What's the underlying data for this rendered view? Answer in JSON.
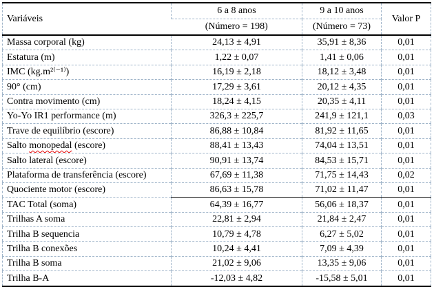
{
  "table": {
    "header": {
      "variables": "Variáveis",
      "group_6_8": {
        "title": "6 a 8 anos",
        "subtitle": "(Número = 198)"
      },
      "group_9_10": {
        "title": "9 a 10 anos",
        "subtitle": "(Número = 73)"
      },
      "valor_p": "Valor P"
    },
    "rows": [
      {
        "label": "Massa corporal (kg)",
        "v6_8": "24,13 ± 4,91",
        "v9_10": "35,91 ± 8,36",
        "p": "0,01"
      },
      {
        "label": "Estatura (m)",
        "v6_8": "1,22 ± 0,07",
        "v9_10": "1,41 ± 0,06",
        "p": "0,01"
      },
      {
        "label": "IMC (kg.m²⁽⁻¹⁾)",
        "v6_8": "16,19 ± 2,18",
        "v9_10": "18,12 ± 3,48",
        "p": "0,01"
      },
      {
        "label": "90° (cm)",
        "v6_8": "17,29 ± 3,61",
        "v9_10": "20,12 ± 4,35",
        "p": "0,01"
      },
      {
        "label": "Contra movimento (cm)",
        "v6_8": "18,24 ± 4,15",
        "v9_10": "20,35 ± 4,11",
        "p": "0,01"
      },
      {
        "label": "Yo-Yo IR1 performance (m)",
        "v6_8": "326,3 ± 225,7",
        "v9_10": "241,9 ± 121,1",
        "p": "0,03"
      },
      {
        "label": "Trave de equilíbrio (escore)",
        "v6_8": "86,88 ± 10,84",
        "v9_10": "81,92 ± 11,65",
        "p": "0,01"
      },
      {
        "label": "Salto monopedal (escore)",
        "v6_8": "88,41 ± 13,43",
        "v9_10": "74,04 ± 13,51",
        "p": "0,01",
        "misspelled": "monopedal"
      },
      {
        "label": "Salto lateral (escore)",
        "v6_8": "90,91 ± 13,74",
        "v9_10": "84,53 ± 15,71",
        "p": "0,01"
      },
      {
        "label": "Plataforma de transferência (escore)",
        "v6_8": "67,69 ± 11,38",
        "v9_10": "71,75 ± 14,43",
        "p": "0,02"
      },
      {
        "label": "Quociente motor (escore)",
        "v6_8": "86,63 ± 15,78",
        "v9_10": "71,02 ± 11,47",
        "p": "0,01"
      },
      {
        "label": "TAC Total (soma)",
        "v6_8": "64,39 ± 16,77",
        "v9_10": "56,06 ± 18,37",
        "p": "0,01",
        "solid_top": true
      },
      {
        "label": "Trilhas A soma",
        "v6_8": "22,81 ± 2,94",
        "v9_10": "21,84 ± 2,47",
        "p": "0,01"
      },
      {
        "label": "Trilha B sequencia",
        "v6_8": "10,79 ± 4,78",
        "v9_10": "6,27 ± 5,02",
        "p": "0,01"
      },
      {
        "label": "Trilha B conexões",
        "v6_8": "10,24 ± 4,41",
        "v9_10": "7,09 ± 4,39",
        "p": "0,01"
      },
      {
        "label": "Trilha B soma",
        "v6_8": "21,02 ± 9,06",
        "v9_10": "13,35 ± 9,06",
        "p": "0,01"
      },
      {
        "label": "Trilha B-A",
        "v6_8": "-12,03 ± 4,82",
        "v9_10": "-15,58 ± 5,01",
        "p": "0,01"
      }
    ],
    "colors": {
      "grid_dashed": "#9fb4c9",
      "rule_solid": "#000000",
      "spellcheck_squiggle": "#e60000",
      "text": "#000000",
      "background": "#ffffff"
    }
  }
}
